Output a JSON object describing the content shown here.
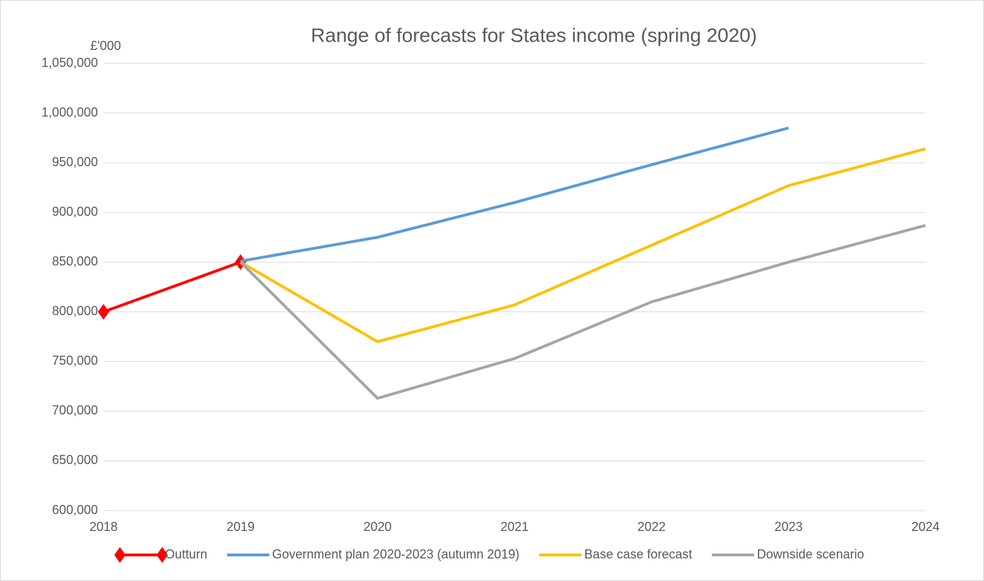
{
  "chart_data": {
    "type": "line",
    "title": "Range of forecasts for States income (spring 2020)",
    "y_unit_label": "£'000",
    "categories": [
      "2018",
      "2019",
      "2020",
      "2021",
      "2022",
      "2023",
      "2024"
    ],
    "series": [
      {
        "name": "Outturn",
        "color": "#ff0000",
        "marker": "diamond",
        "values": [
          800000,
          850000,
          null,
          null,
          null,
          null,
          null
        ]
      },
      {
        "name": "Government plan 2020-2023 (autumn 2019)",
        "color": "#5b9bd5",
        "values": [
          null,
          851000,
          875000,
          910000,
          948000,
          985000,
          null
        ]
      },
      {
        "name": "Base case forecast",
        "color": "#ffc000",
        "values": [
          null,
          850000,
          770000,
          807000,
          867000,
          927000,
          964000
        ]
      },
      {
        "name": "Downside scenario",
        "color": "#a5a5a5",
        "values": [
          null,
          850000,
          713000,
          753000,
          810000,
          850000,
          887000
        ]
      }
    ],
    "ylim": [
      600000,
      1050000
    ],
    "yticks": [
      {
        "value": 600000,
        "label": "600,000"
      },
      {
        "value": 650000,
        "label": "650,000"
      },
      {
        "value": 700000,
        "label": "700,000"
      },
      {
        "value": 750000,
        "label": "750,000"
      },
      {
        "value": 800000,
        "label": "800,000"
      },
      {
        "value": 850000,
        "label": "850,000"
      },
      {
        "value": 900000,
        "label": "900,000"
      },
      {
        "value": 950000,
        "label": "950,000"
      },
      {
        "value": 1000000,
        "label": "1,000,000"
      },
      {
        "value": 1050000,
        "label": "1,050,000"
      }
    ],
    "grid": true,
    "legend": "bottom"
  }
}
